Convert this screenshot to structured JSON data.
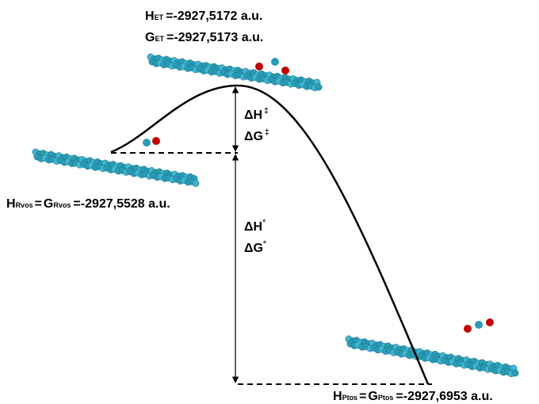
{
  "transition_state": {
    "enthalpy_symbol": "H",
    "enthalpy_subscript": "ET",
    "enthalpy_value": "=-2927,5172 a.u.",
    "gibbs_symbol": "G",
    "gibbs_subscript": "ET",
    "gibbs_value": "=-2927,5173 a.u."
  },
  "reactants": {
    "enthalpy_symbol": "H",
    "enthalpy_subscript": "Rvos",
    "separator": "=",
    "gibbs_symbol": "G",
    "gibbs_subscript": "Rvos",
    "value": "=-2927,5528 a.u."
  },
  "products": {
    "enthalpy_symbol": "H",
    "enthalpy_subscript": "Ptos",
    "separator": "=",
    "gibbs_symbol": "G",
    "gibbs_subscript": "Ptos",
    "value": "=-2927,6953 a.u."
  },
  "barrier": {
    "enthalpy": "ΔH",
    "gibbs": "ΔG",
    "mark": "‡"
  },
  "reaction": {
    "enthalpy": "ΔH",
    "gibbs": "ΔG",
    "mark": "°"
  }
}
